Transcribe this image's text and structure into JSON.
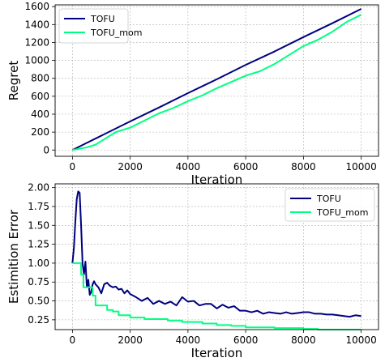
{
  "chart_data": [
    {
      "type": "line",
      "xlabel": "Iteration",
      "ylabel": "Regret",
      "xlim": [
        -600,
        10600
      ],
      "ylim": [
        -70,
        1620
      ],
      "xticks": [
        0,
        2000,
        4000,
        6000,
        8000,
        10000
      ],
      "yticks": [
        0,
        200,
        400,
        600,
        800,
        1000,
        1200,
        1400,
        1600
      ],
      "grid": true,
      "legend_position": "upper-left",
      "series": [
        {
          "name": "TOFU",
          "color": "#000080",
          "x": [
            0,
            500,
            1000,
            2000,
            3000,
            4000,
            5000,
            6000,
            7000,
            8000,
            9000,
            10000
          ],
          "y": [
            0,
            80,
            160,
            320,
            475,
            635,
            790,
            950,
            1100,
            1260,
            1415,
            1575
          ]
        },
        {
          "name": "TOFU_mom",
          "color": "#00ff80",
          "x": [
            0,
            500,
            800,
            1000,
            1500,
            2000,
            2500,
            3000,
            3500,
            4000,
            4500,
            5000,
            5500,
            6000,
            6500,
            7000,
            7500,
            8000,
            8500,
            9000,
            9500,
            10000
          ],
          "y": [
            0,
            30,
            60,
            100,
            200,
            250,
            330,
            410,
            470,
            545,
            610,
            690,
            760,
            830,
            880,
            960,
            1060,
            1160,
            1230,
            1320,
            1430,
            1510
          ]
        }
      ]
    },
    {
      "type": "line",
      "xlabel": "Iteration",
      "ylabel": "Estimition Error",
      "xlim": [
        -600,
        10600
      ],
      "ylim": [
        0.12,
        2.05
      ],
      "xticks": [
        0,
        2000,
        4000,
        6000,
        8000,
        10000
      ],
      "yticks": [
        0.25,
        0.5,
        0.75,
        1.0,
        1.25,
        1.5,
        1.75,
        2.0
      ],
      "ytick_labels": [
        "0.25",
        "0.50",
        "0.75",
        "1.00",
        "1.25",
        "1.50",
        "1.75",
        "2.00"
      ],
      "grid": true,
      "legend_position": "upper-right",
      "series": [
        {
          "name": "TOFU",
          "color": "#000080",
          "x": [
            0,
            50,
            100,
            150,
            200,
            250,
            300,
            350,
            400,
            450,
            500,
            550,
            600,
            650,
            700,
            750,
            800,
            900,
            1000,
            1100,
            1200,
            1300,
            1400,
            1500,
            1600,
            1700,
            1800,
            1900,
            2000,
            2200,
            2400,
            2600,
            2800,
            3000,
            3200,
            3400,
            3600,
            3800,
            4000,
            4200,
            4400,
            4600,
            4800,
            5000,
            5200,
            5400,
            5600,
            5800,
            6000,
            6200,
            6400,
            6600,
            6800,
            7000,
            7200,
            7400,
            7600,
            7800,
            8000,
            8200,
            8400,
            8600,
            8800,
            9000,
            9200,
            9400,
            9600,
            9800,
            10000
          ],
          "y": [
            1.0,
            1.2,
            1.55,
            1.85,
            1.95,
            1.93,
            1.5,
            1.0,
            0.85,
            1.02,
            0.68,
            0.78,
            0.58,
            0.62,
            0.72,
            0.76,
            0.72,
            0.68,
            0.6,
            0.72,
            0.74,
            0.7,
            0.68,
            0.69,
            0.65,
            0.66,
            0.6,
            0.64,
            0.59,
            0.55,
            0.5,
            0.54,
            0.46,
            0.5,
            0.46,
            0.49,
            0.44,
            0.55,
            0.49,
            0.5,
            0.44,
            0.46,
            0.46,
            0.4,
            0.45,
            0.41,
            0.43,
            0.37,
            0.37,
            0.35,
            0.37,
            0.33,
            0.35,
            0.34,
            0.33,
            0.35,
            0.33,
            0.34,
            0.35,
            0.35,
            0.33,
            0.33,
            0.32,
            0.32,
            0.31,
            0.3,
            0.29,
            0.31,
            0.3
          ]
        },
        {
          "name": "TOFU_mom",
          "color": "#00ff80",
          "x": [
            0,
            300,
            300,
            380,
            380,
            700,
            700,
            800,
            800,
            1200,
            1200,
            1400,
            1400,
            1600,
            1600,
            2000,
            2000,
            2500,
            2500,
            3300,
            3300,
            3800,
            3800,
            4500,
            4500,
            5000,
            5000,
            5500,
            5500,
            6000,
            6000,
            7000,
            7000,
            8000,
            8000,
            8500,
            8500,
            10000
          ],
          "y": [
            1.0,
            1.0,
            0.85,
            0.85,
            0.68,
            0.68,
            0.57,
            0.57,
            0.44,
            0.44,
            0.38,
            0.38,
            0.36,
            0.36,
            0.31,
            0.31,
            0.28,
            0.28,
            0.26,
            0.26,
            0.24,
            0.24,
            0.22,
            0.22,
            0.2,
            0.2,
            0.18,
            0.18,
            0.17,
            0.17,
            0.15,
            0.15,
            0.14,
            0.14,
            0.13,
            0.13,
            0.12,
            0.12
          ]
        }
      ]
    }
  ]
}
